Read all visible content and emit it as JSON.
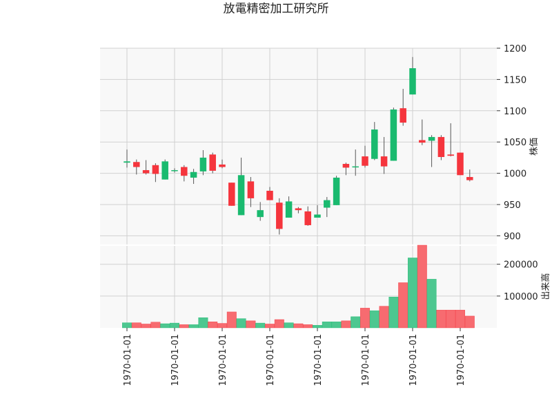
{
  "chart_data": {
    "type": "candlestick",
    "title": "放電精密加工研究所",
    "x_tick_labels": [
      "1970-01-01",
      "1970-01-01",
      "1970-01-01",
      "1970-01-01",
      "1970-01-01",
      "1970-01-01",
      "1970-01-01",
      "1970-01-01"
    ],
    "x_tick_index": [
      0,
      5,
      10,
      15,
      20,
      25,
      30,
      35
    ],
    "price_axis": {
      "label": "株価",
      "ylim": [
        885,
        1200
      ],
      "ticks": [
        900,
        950,
        1000,
        1050,
        1100,
        1150,
        1200
      ]
    },
    "volume_axis": {
      "label": "出来高",
      "ylim": [
        0,
        260000
      ],
      "ticks": [
        100000,
        200000
      ]
    },
    "colors": {
      "up": "#1aba6f",
      "down": "#f5353d",
      "up_volume": "#4dc790",
      "down_volume": "#f76b70",
      "grid": "#d0d0d0",
      "plot_bg": "#f8f8f8"
    },
    "candles": [
      {
        "open": 1017,
        "high": 1038,
        "low": 1009,
        "close": 1019,
        "volume": 16000
      },
      {
        "open": 1018,
        "high": 1022,
        "low": 998,
        "close": 1010,
        "volume": 16000
      },
      {
        "open": 1005,
        "high": 1021,
        "low": 998,
        "close": 1000,
        "volume": 12000
      },
      {
        "open": 1013,
        "high": 1016,
        "low": 986,
        "close": 999,
        "volume": 18000
      },
      {
        "open": 990,
        "high": 1022,
        "low": 990,
        "close": 1019,
        "volume": 13000
      },
      {
        "open": 1004,
        "high": 1008,
        "low": 1001,
        "close": 1005,
        "volume": 15000
      },
      {
        "open": 1010,
        "high": 1013,
        "low": 987,
        "close": 996,
        "volume": 10000
      },
      {
        "open": 993,
        "high": 1007,
        "low": 983,
        "close": 1002,
        "volume": 10000
      },
      {
        "open": 1003,
        "high": 1037,
        "low": 997,
        "close": 1025,
        "volume": 32000
      },
      {
        "open": 1030,
        "high": 1033,
        "low": 1000,
        "close": 1004,
        "volume": 19000
      },
      {
        "open": 1014,
        "high": 1022,
        "low": 1008,
        "close": 1010,
        "volume": 14000
      },
      {
        "open": 985,
        "high": 985,
        "low": 948,
        "close": 948,
        "volume": 50000
      },
      {
        "open": 933,
        "high": 1025,
        "low": 933,
        "close": 997,
        "volume": 29000
      },
      {
        "open": 987,
        "high": 994,
        "low": 946,
        "close": 960,
        "volume": 22000
      },
      {
        "open": 930,
        "high": 954,
        "low": 924,
        "close": 941,
        "volume": 15000
      },
      {
        "open": 972,
        "high": 978,
        "low": 957,
        "close": 957,
        "volume": 12000
      },
      {
        "open": 953,
        "high": 960,
        "low": 902,
        "close": 911,
        "volume": 26000
      },
      {
        "open": 929,
        "high": 963,
        "low": 929,
        "close": 955,
        "volume": 16000
      },
      {
        "open": 944,
        "high": 946,
        "low": 936,
        "close": 941,
        "volume": 13000
      },
      {
        "open": 939,
        "high": 947,
        "low": 916,
        "close": 917,
        "volume": 10000
      },
      {
        "open": 929,
        "high": 949,
        "low": 929,
        "close": 934,
        "volume": 8000
      },
      {
        "open": 945,
        "high": 962,
        "low": 930,
        "close": 957,
        "volume": 19000
      },
      {
        "open": 949,
        "high": 996,
        "low": 949,
        "close": 993,
        "volume": 19000
      },
      {
        "open": 1015,
        "high": 1017,
        "low": 997,
        "close": 1009,
        "volume": 22000
      },
      {
        "open": 1011,
        "high": 1038,
        "low": 996,
        "close": 1011,
        "volume": 35000
      },
      {
        "open": 1027,
        "high": 1044,
        "low": 1009,
        "close": 1012,
        "volume": 62000
      },
      {
        "open": 1023,
        "high": 1082,
        "low": 1021,
        "close": 1070,
        "volume": 54000
      },
      {
        "open": 1027,
        "high": 1058,
        "low": 999,
        "close": 1011,
        "volume": 68000
      },
      {
        "open": 1020,
        "high": 1105,
        "low": 1020,
        "close": 1102,
        "volume": 97000
      },
      {
        "open": 1104,
        "high": 1135,
        "low": 1076,
        "close": 1081,
        "volume": 142000
      },
      {
        "open": 1126,
        "high": 1186,
        "low": 1126,
        "close": 1168,
        "volume": 220000
      },
      {
        "open": 1053,
        "high": 1086,
        "low": 1045,
        "close": 1049,
        "volume": 260000
      },
      {
        "open": 1052,
        "high": 1061,
        "low": 1010,
        "close": 1058,
        "volume": 153000
      },
      {
        "open": 1058,
        "high": 1061,
        "low": 1021,
        "close": 1026,
        "volume": 56000
      },
      {
        "open": 1030,
        "high": 1080,
        "low": 1027,
        "close": 1028,
        "volume": 56000
      },
      {
        "open": 1033,
        "high": 1033,
        "low": 997,
        "close": 997,
        "volume": 56000
      },
      {
        "open": 994,
        "high": 1006,
        "low": 987,
        "close": 989,
        "volume": 37000
      }
    ]
  }
}
